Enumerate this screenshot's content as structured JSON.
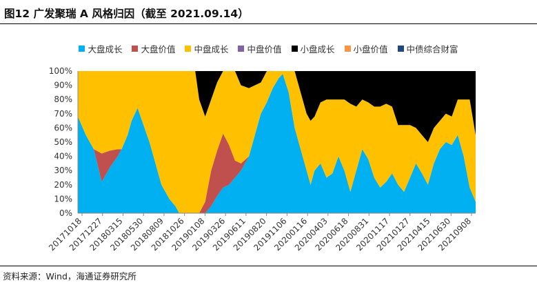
{
  "figure": {
    "title": "图12 广发聚瑞 A 风格归因（截至 2021.09.14）",
    "source": "资料来源：Wind，海通证券研究所"
  },
  "colors": {
    "大盘成长": "#00B0F0",
    "大盘价值": "#C0504D",
    "中盘成长": "#FFC000",
    "中盘价值": "#8064A2",
    "小盘成长": "#000000",
    "小盘价值": "#F79646",
    "中债综合财富": "#1F497D"
  },
  "chart_data": {
    "type": "area",
    "stacked": true,
    "ylabel": "",
    "ylim": [
      0,
      100
    ],
    "y_tick_labels": [
      "0%",
      "10%",
      "20%",
      "30%",
      "40%",
      "50%",
      "60%",
      "70%",
      "80%",
      "90%",
      "100%"
    ],
    "x_tick_labels": [
      "20171018",
      "20171227",
      "20180315",
      "20180530",
      "20180809",
      "20181026",
      "20190108",
      "20190326",
      "20190611",
      "20190820",
      "20191106",
      "20200116",
      "20200403",
      "20200618",
      "20200831",
      "20201117",
      "20210127",
      "20210415",
      "20210630",
      "20210908"
    ],
    "legend": [
      "大盘成长",
      "大盘价值",
      "中盘成长",
      "中盘价值",
      "小盘成长",
      "小盘价值",
      "中债综合财富"
    ],
    "legend_position": "top",
    "series": [
      {
        "name": "大盘成长",
        "x": [
          0,
          2,
          4,
          6,
          8,
          10,
          11,
          12.5,
          13.5,
          15,
          16.5,
          18,
          19.5,
          21,
          23,
          24.5,
          25.5,
          26.5,
          27.5,
          28.5,
          29.5,
          30.5,
          32,
          33.5,
          35,
          36.5,
          38,
          39.5,
          41,
          43,
          44.5,
          46,
          47.5,
          49,
          50.5,
          51.5,
          53,
          54.5,
          56,
          57.5,
          58.5,
          59.5,
          61,
          62.5,
          64,
          65.5,
          67,
          68.5,
          70,
          71.5,
          73,
          74.5,
          76,
          77.5,
          79,
          80.5,
          82,
          83.5,
          85,
          86.5,
          88,
          89.5,
          91,
          92.5,
          94,
          95.5,
          97,
          98.5,
          100
        ],
        "values": [
          68,
          55,
          45,
          22,
          32,
          40,
          45,
          55,
          65,
          74,
          62,
          50,
          35,
          20,
          10,
          5,
          0,
          0,
          0,
          0,
          0,
          0,
          0,
          5,
          12,
          18,
          20,
          25,
          30,
          40,
          55,
          70,
          78,
          88,
          95,
          98,
          85,
          60,
          45,
          30,
          20,
          30,
          35,
          25,
          28,
          40,
          30,
          15,
          30,
          45,
          38,
          25,
          18,
          22,
          28,
          20,
          15,
          25,
          35,
          28,
          20,
          35,
          45,
          50,
          48,
          55,
          40,
          18,
          8
        ]
      },
      {
        "name": "大盘价值",
        "x": [
          0,
          2,
          4,
          6,
          8,
          10,
          11,
          12.5,
          13.5,
          15,
          16.5,
          18,
          19.5,
          21,
          23,
          24.5,
          25.5,
          26.5,
          27.5,
          28.5,
          29.5,
          30.5,
          32,
          33.5,
          35,
          36.5,
          38,
          39.5,
          41,
          43,
          44.5,
          46,
          47.5,
          49,
          50.5,
          51.5,
          53,
          54.5,
          56,
          57.5,
          58.5,
          59.5,
          61,
          62.5,
          64,
          65.5,
          67,
          68.5,
          70,
          71.5,
          73,
          74.5,
          76,
          77.5,
          79,
          80.5,
          82,
          83.5,
          85,
          86.5,
          88,
          89.5,
          91,
          92.5,
          94,
          95.5,
          97,
          98.5,
          100
        ],
        "values": [
          0,
          0,
          0,
          20,
          12,
          5,
          0,
          0,
          0,
          0,
          0,
          0,
          0,
          0,
          0,
          0,
          0,
          0,
          0,
          0,
          0,
          0,
          8,
          25,
          32,
          38,
          28,
          12,
          5,
          0,
          0,
          0,
          0,
          0,
          0,
          0,
          0,
          0,
          0,
          0,
          0,
          0,
          0,
          0,
          0,
          0,
          0,
          0,
          0,
          0,
          0,
          0,
          0,
          0,
          0,
          0,
          0,
          0,
          0,
          0,
          0,
          0,
          0,
          0,
          0,
          0,
          0,
          0,
          0
        ]
      },
      {
        "name": "中盘成长",
        "x": [
          0,
          2,
          4,
          6,
          8,
          10,
          11,
          12.5,
          13.5,
          15,
          16.5,
          18,
          19.5,
          21,
          23,
          24.5,
          25.5,
          26.5,
          27.5,
          28.5,
          29.5,
          30.5,
          32,
          33.5,
          35,
          36.5,
          38,
          39.5,
          41,
          43,
          44.5,
          46,
          47.5,
          49,
          50.5,
          51.5,
          53,
          54.5,
          56,
          57.5,
          58.5,
          59.5,
          61,
          62.5,
          64,
          65.5,
          67,
          68.5,
          70,
          71.5,
          73,
          74.5,
          76,
          77.5,
          79,
          80.5,
          82,
          83.5,
          85,
          86.5,
          88,
          89.5,
          91,
          92.5,
          94,
          95.5,
          97,
          98.5,
          100
        ],
        "values": [
          32,
          45,
          55,
          58,
          56,
          55,
          55,
          45,
          35,
          26,
          38,
          50,
          65,
          80,
          90,
          95,
          100,
          100,
          100,
          100,
          100,
          80,
          60,
          50,
          48,
          44,
          52,
          63,
          55,
          48,
          35,
          22,
          22,
          12,
          5,
          2,
          15,
          40,
          40,
          40,
          45,
          38,
          43,
          55,
          52,
          40,
          50,
          62,
          45,
          35,
          40,
          50,
          57,
          55,
          47,
          42,
          47,
          37,
          25,
          27,
          30,
          25,
          20,
          20,
          20,
          25,
          40,
          62,
          47
        ]
      },
      {
        "name": "中盘价值",
        "x": [
          0,
          100
        ],
        "values": [
          0,
          0
        ]
      },
      {
        "name": "小盘成长",
        "x": [
          0,
          2,
          4,
          6,
          8,
          10,
          11,
          12.5,
          13.5,
          15,
          16.5,
          18,
          19.5,
          21,
          23,
          24.5,
          25.5,
          26.5,
          27.5,
          28.5,
          29.5,
          30.5,
          32,
          33.5,
          35,
          36.5,
          38,
          39.5,
          41,
          43,
          44.5,
          46,
          47.5,
          49,
          50.5,
          51.5,
          53,
          54.5,
          56,
          57.5,
          58.5,
          59.5,
          61,
          62.5,
          64,
          65.5,
          67,
          68.5,
          70,
          71.5,
          73,
          74.5,
          76,
          77.5,
          79,
          80.5,
          82,
          83.5,
          85,
          86.5,
          88,
          89.5,
          91,
          92.5,
          94,
          95.5,
          97,
          98.5,
          100
        ],
        "values": [
          0,
          0,
          0,
          0,
          0,
          0,
          0,
          0,
          0,
          0,
          0,
          0,
          0,
          0,
          0,
          0,
          0,
          0,
          0,
          0,
          0,
          20,
          32,
          20,
          8,
          0,
          0,
          0,
          10,
          12,
          10,
          8,
          0,
          0,
          0,
          0,
          0,
          0,
          15,
          30,
          35,
          32,
          22,
          20,
          20,
          20,
          20,
          23,
          25,
          20,
          22,
          25,
          25,
          23,
          25,
          38,
          38,
          38,
          40,
          45,
          50,
          40,
          35,
          30,
          32,
          20,
          20,
          20,
          45
        ]
      },
      {
        "name": "小盘价值",
        "x": [
          0,
          100
        ],
        "values": [
          0,
          0
        ]
      },
      {
        "name": "中债综合财富",
        "x": [
          0,
          100
        ],
        "values": [
          0,
          0
        ]
      }
    ]
  }
}
